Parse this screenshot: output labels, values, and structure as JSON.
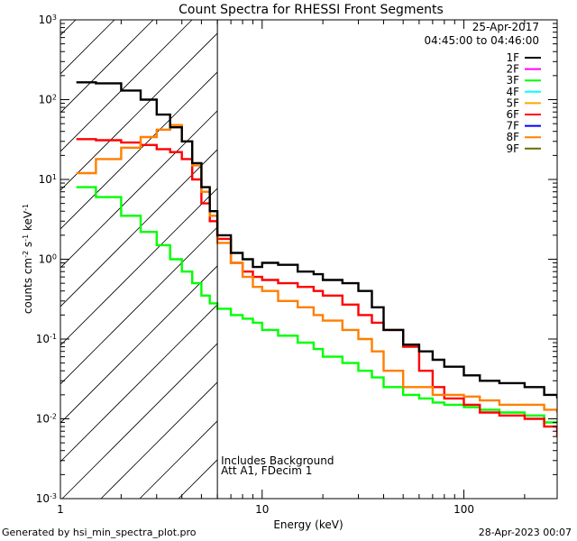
{
  "footer": {
    "left": "Generated by hsi_min_spectra_plot.pro",
    "right": "28-Apr-2023 00:07"
  },
  "chart_data": {
    "type": "line",
    "style": "step",
    "title": "Count Spectra for RHESSI Front Segments",
    "xlabel": "Energy (keV)",
    "ylabel": "counts cm^-2 s^-1 keV^-1",
    "xscale": "log",
    "yscale": "log",
    "xlim": [
      1,
      290
    ],
    "ylim": [
      0.001,
      1000
    ],
    "x_tick_labels": [
      {
        "value": 1,
        "label": "1"
      },
      {
        "value": 10,
        "label": "10"
      },
      {
        "value": 100,
        "label": "100"
      }
    ],
    "y_tick_labels": [
      {
        "value": 0.001,
        "base": "10",
        "exp": "-3"
      },
      {
        "value": 0.01,
        "base": "10",
        "exp": "-2"
      },
      {
        "value": 0.1,
        "base": "10",
        "exp": "-1"
      },
      {
        "value": 1,
        "base": "10",
        "exp": "0"
      },
      {
        "value": 10,
        "base": "10",
        "exp": "1"
      },
      {
        "value": 100,
        "base": "10",
        "exp": "2"
      },
      {
        "value": 1000,
        "base": "10",
        "exp": "3"
      }
    ],
    "legend_position": "top-right",
    "date": "25-Apr-2017",
    "time_range": "04:45:00 to 04:46:00",
    "legend": [
      {
        "label": "1F",
        "color": "#000000"
      },
      {
        "label": "2F",
        "color": "#ff00ff"
      },
      {
        "label": "3F",
        "color": "#00ff00"
      },
      {
        "label": "4F",
        "color": "#00ffff"
      },
      {
        "label": "5F",
        "color": "#ffa500"
      },
      {
        "label": "6F",
        "color": "#ff0000"
      },
      {
        "label": "7F",
        "color": "#0000ff"
      },
      {
        "label": "8F",
        "color": "#ff7f00"
      },
      {
        "label": "9F",
        "color": "#6b6b00"
      }
    ],
    "shaded_region": {
      "from": 1,
      "to": 6,
      "pattern": "diagonal hatch"
    },
    "vertical_line_x": 6,
    "annotations": [
      "Includes Background",
      "Att A1, FDecim  1"
    ],
    "series": [
      {
        "name": "1F",
        "color": "#000000",
        "x": [
          1.2,
          1.5,
          2.0,
          2.5,
          3.0,
          3.5,
          4.0,
          4.5,
          5.0,
          5.5,
          6.0,
          7.0,
          8.0,
          9.0,
          10,
          12,
          15,
          18,
          20,
          25,
          30,
          35,
          40,
          50,
          60,
          70,
          80,
          100,
          120,
          150,
          200,
          250,
          290
        ],
        "values": [
          165,
          160,
          130,
          100,
          65,
          45,
          30,
          16,
          8,
          4,
          2.0,
          1.2,
          1.0,
          0.8,
          0.9,
          0.85,
          0.7,
          0.65,
          0.55,
          0.5,
          0.4,
          0.25,
          0.13,
          0.085,
          0.07,
          0.055,
          0.045,
          0.035,
          0.03,
          0.028,
          0.025,
          0.02,
          0.018
        ]
      },
      {
        "name": "6F",
        "color": "#ff0000",
        "x": [
          1.2,
          1.5,
          2.0,
          2.5,
          3.0,
          3.5,
          4.0,
          4.5,
          5.0,
          5.5,
          6.0,
          7.0,
          8.0,
          9.0,
          10,
          12,
          15,
          18,
          20,
          25,
          30,
          35,
          40,
          50,
          60,
          70,
          80,
          100,
          120,
          150,
          200,
          250,
          290
        ],
        "values": [
          32,
          31,
          29,
          27,
          24,
          22,
          18,
          10,
          5,
          3,
          1.8,
          0.9,
          0.7,
          0.6,
          0.55,
          0.5,
          0.45,
          0.4,
          0.35,
          0.27,
          0.2,
          0.16,
          0.13,
          0.08,
          0.04,
          0.025,
          0.018,
          0.015,
          0.012,
          0.011,
          0.01,
          0.008,
          0.006
        ]
      },
      {
        "name": "3F",
        "color": "#00ff00",
        "x": [
          1.2,
          1.5,
          2.0,
          2.5,
          3.0,
          3.5,
          4.0,
          4.5,
          5.0,
          5.5,
          6.0,
          7.0,
          8.0,
          9.0,
          10,
          12,
          15,
          18,
          20,
          25,
          30,
          35,
          40,
          50,
          60,
          70,
          80,
          100,
          120,
          150,
          200,
          250,
          290
        ],
        "values": [
          8,
          6,
          3.5,
          2.2,
          1.5,
          1.0,
          0.7,
          0.5,
          0.35,
          0.28,
          0.24,
          0.2,
          0.18,
          0.16,
          0.13,
          0.11,
          0.09,
          0.075,
          0.06,
          0.05,
          0.04,
          0.033,
          0.025,
          0.02,
          0.018,
          0.016,
          0.015,
          0.014,
          0.013,
          0.012,
          0.011,
          0.009,
          0.009
        ]
      },
      {
        "name": "8F",
        "color": "#ff7f00",
        "x": [
          1.2,
          1.5,
          2.0,
          2.5,
          3.0,
          3.5,
          4.0,
          4.5,
          5.0,
          5.5,
          6.0,
          7.0,
          8.0,
          9.0,
          10,
          12,
          15,
          18,
          20,
          25,
          30,
          35,
          40,
          50,
          60,
          70,
          80,
          100,
          120,
          150,
          200,
          250,
          290
        ],
        "values": [
          12,
          18,
          25,
          34,
          42,
          48,
          30,
          15,
          7,
          3.5,
          1.6,
          0.9,
          0.6,
          0.45,
          0.4,
          0.3,
          0.25,
          0.2,
          0.17,
          0.13,
          0.1,
          0.07,
          0.04,
          0.025,
          0.025,
          0.02,
          0.02,
          0.019,
          0.017,
          0.015,
          0.015,
          0.013,
          0.012
        ]
      }
    ]
  }
}
